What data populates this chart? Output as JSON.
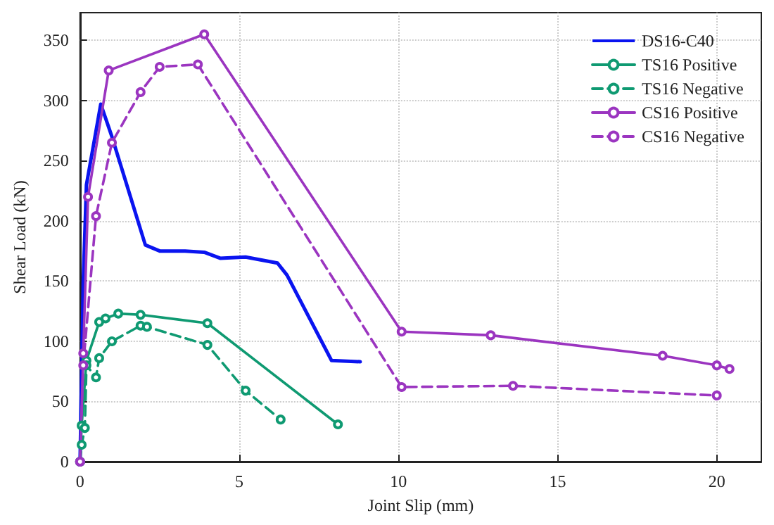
{
  "chart_data": {
    "type": "line",
    "xlabel": "Joint Slip (mm)",
    "ylabel": "Shear Load (kN)",
    "xlim": [
      0,
      21.4
    ],
    "xticks": [
      0,
      5,
      10,
      15,
      20
    ],
    "ylim": [
      0,
      373
    ],
    "yticks": [
      0,
      50,
      100,
      150,
      200,
      250,
      300,
      350
    ],
    "grid": true,
    "legend": "top right",
    "series": [
      {
        "name": "DS16-C40",
        "color": "#0a14f0",
        "marker": "none",
        "line_style": "solid",
        "x": [
          0,
          0.1,
          0.2,
          0.65,
          1,
          2.05,
          2.5,
          3.3,
          3.9,
          4.4,
          5.2,
          6.2,
          6.5,
          7.9,
          8.8
        ],
        "values": [
          0,
          150,
          230,
          297,
          270,
          180,
          175,
          175,
          174,
          169,
          170,
          165,
          155,
          84,
          83
        ]
      },
      {
        "name": "TS16 Positive",
        "color": "#0f9a72",
        "marker": "circle",
        "line_style": "solid",
        "x": [
          0,
          0.05,
          0.2,
          0.6,
          0.8,
          1.2,
          1.9,
          4,
          8.1
        ],
        "values": [
          0,
          30,
          84,
          116,
          119,
          123,
          122,
          115,
          31
        ]
      },
      {
        "name": "TS16 Negative",
        "color": "#0f9a72",
        "marker": "circle",
        "line_style": "dashed",
        "x": [
          0,
          0.05,
          0.15,
          0.2,
          0.5,
          0.6,
          1,
          1.9,
          2.1,
          4,
          5.2,
          6.3
        ],
        "values": [
          0,
          14,
          28,
          80,
          70,
          86,
          100,
          113,
          112,
          97,
          59,
          35
        ]
      },
      {
        "name": "CS16 Positive",
        "color": "#9b35c0",
        "marker": "circle",
        "line_style": "solid",
        "x": [
          0,
          0.1,
          0.25,
          0.9,
          3.9,
          10.1,
          12.9,
          18.3,
          20,
          20.4
        ],
        "values": [
          0,
          90,
          220,
          325,
          355,
          108,
          105,
          88,
          80,
          77
        ]
      },
      {
        "name": "CS16 Negative",
        "color": "#9b35c0",
        "marker": "circle",
        "line_style": "dashed",
        "x": [
          0,
          0.1,
          0.5,
          1,
          1.9,
          2.5,
          3.7,
          10.1,
          13.6,
          20
        ],
        "values": [
          0,
          80,
          204,
          265,
          307,
          328,
          330,
          62,
          63,
          55
        ]
      }
    ]
  }
}
